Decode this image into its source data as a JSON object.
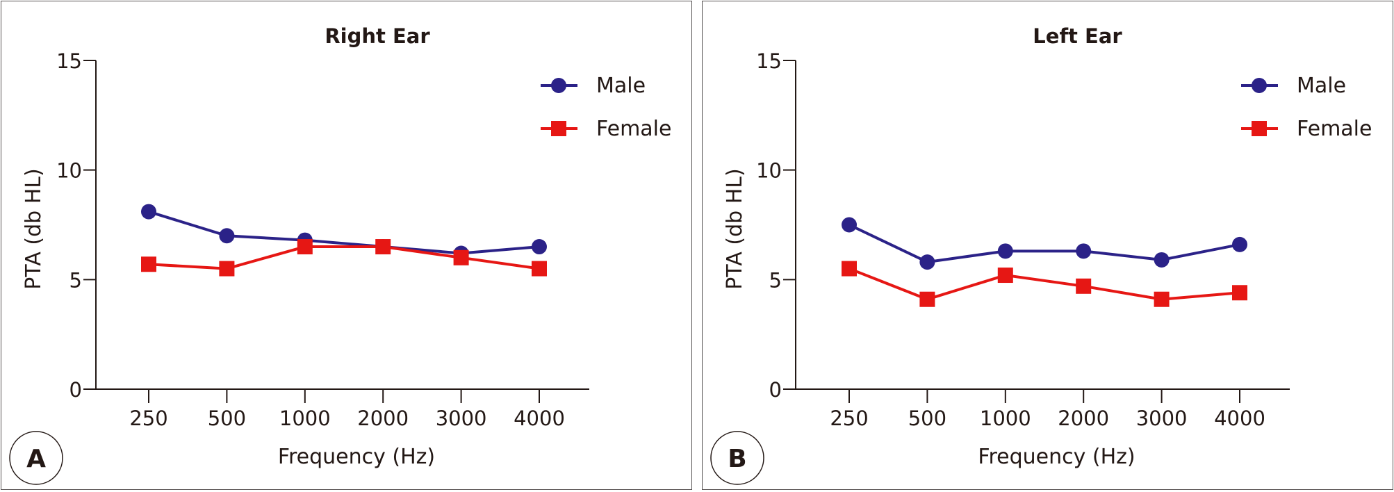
{
  "chart_data": [
    {
      "type": "line",
      "panel_label": "A",
      "title": "Right Ear",
      "xlabel": "Frequency (Hz)",
      "ylabel": "PTA (db HL)",
      "categories": [
        "250",
        "500",
        "1000",
        "2000",
        "3000",
        "4000"
      ],
      "ylim": [
        0,
        15
      ],
      "yticks": [
        0,
        5,
        10,
        15
      ],
      "grid": false,
      "legend_position": "top-right",
      "series": [
        {
          "name": "Male",
          "marker": "circle",
          "color": "#2b2288",
          "values": [
            8.1,
            7.0,
            6.8,
            6.5,
            6.2,
            6.5
          ]
        },
        {
          "name": "Female",
          "marker": "square",
          "color": "#e61714",
          "values": [
            5.7,
            5.5,
            6.5,
            6.5,
            6.0,
            5.5
          ]
        }
      ]
    },
    {
      "type": "line",
      "panel_label": "B",
      "title": "Left Ear",
      "xlabel": "Frequency (Hz)",
      "ylabel": "PTA (db HL)",
      "categories": [
        "250",
        "500",
        "1000",
        "2000",
        "3000",
        "4000"
      ],
      "ylim": [
        0,
        15
      ],
      "yticks": [
        0,
        5,
        10,
        15
      ],
      "grid": false,
      "legend_position": "top-right",
      "series": [
        {
          "name": "Male",
          "marker": "circle",
          "color": "#2b2288",
          "values": [
            7.5,
            5.8,
            6.3,
            6.3,
            5.9,
            6.6
          ]
        },
        {
          "name": "Female",
          "marker": "square",
          "color": "#e61714",
          "values": [
            5.5,
            4.1,
            5.2,
            4.7,
            4.1,
            4.4
          ]
        }
      ]
    }
  ]
}
